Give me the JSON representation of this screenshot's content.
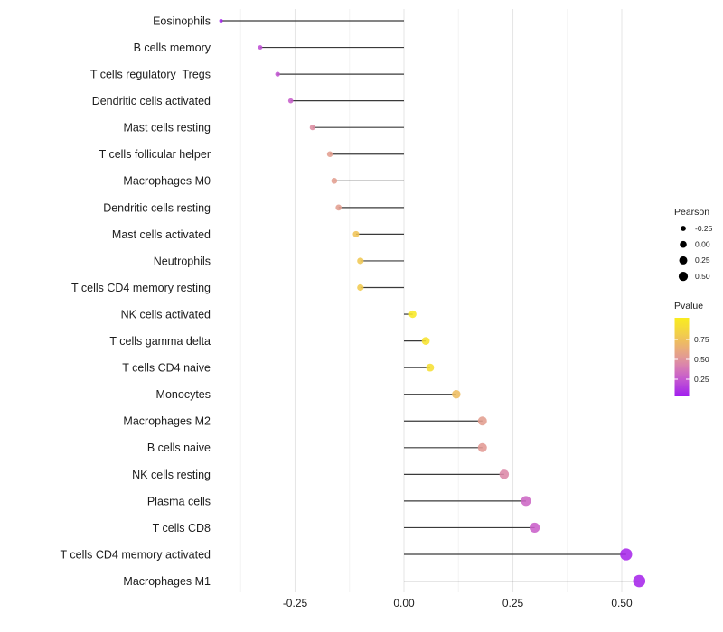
{
  "chart_data": {
    "type": "lollipop",
    "title": "",
    "xlabel": "",
    "ylabel": "",
    "grid": true,
    "background": "#ffffff",
    "categories": [
      "Eosinophils",
      "B cells memory",
      "T cells regulatory  Tregs",
      "Dendritic cells activated",
      "Mast cells resting",
      "T cells follicular helper",
      "Macrophages M0",
      "Dendritic cells resting",
      "Mast cells activated",
      "Neutrophils",
      "T cells CD4 memory resting",
      "NK cells activated",
      "T cells gamma delta",
      "T cells CD4 naive",
      "Monocytes",
      "Macrophages M2",
      "B cells naive",
      "NK cells resting",
      "Plasma cells",
      "T cells CD8",
      "T cells CD4 memory activated",
      "Macrophages M1"
    ],
    "series": [
      {
        "name": "Pearson",
        "values": [
          -0.42,
          -0.33,
          -0.29,
          -0.26,
          -0.21,
          -0.17,
          -0.16,
          -0.15,
          -0.11,
          -0.1,
          -0.1,
          0.02,
          0.05,
          0.06,
          0.12,
          0.18,
          0.18,
          0.23,
          0.28,
          0.3,
          0.51,
          0.54
        ]
      },
      {
        "name": "Pvalue",
        "values": [
          0.02,
          0.18,
          0.2,
          0.24,
          0.44,
          0.52,
          0.52,
          0.52,
          0.74,
          0.76,
          0.78,
          0.97,
          0.92,
          0.9,
          0.7,
          0.52,
          0.5,
          0.42,
          0.28,
          0.25,
          0.04,
          0.03
        ]
      }
    ],
    "x_axis": {
      "ticks": [
        -0.25,
        0.0,
        0.25,
        0.5
      ],
      "tick_labels": [
        "-0.25",
        "0.00",
        "0.25",
        "0.50"
      ],
      "minor_ticks": [
        -0.375,
        -0.125,
        0.125,
        0.375
      ],
      "range": [
        -0.47,
        0.59
      ]
    },
    "legend": {
      "position": "right",
      "size_legend": {
        "title": "Pearson",
        "labels": [
          "-0.25",
          "0.00",
          "0.25",
          "0.50"
        ],
        "values": [
          -0.25,
          0.0,
          0.25,
          0.5
        ],
        "dot_color": "#000000"
      },
      "color_legend": {
        "title": "Pvalue",
        "labels": [
          "0.75",
          "0.50",
          "0.25"
        ],
        "values": [
          0.75,
          0.5,
          0.25
        ],
        "high_color": "#F9EC20",
        "low_color": "#A11CF0"
      }
    },
    "color_scale_stops": [
      {
        "p": 0.0,
        "color": "#A11CF0"
      },
      {
        "p": 0.1,
        "color": "#B13AE0"
      },
      {
        "p": 0.2,
        "color": "#C254D2"
      },
      {
        "p": 0.3,
        "color": "#CF6CC0"
      },
      {
        "p": 0.4,
        "color": "#DA84AC"
      },
      {
        "p": 0.5,
        "color": "#E29A94"
      },
      {
        "p": 0.6,
        "color": "#E9AC7B"
      },
      {
        "p": 0.7,
        "color": "#EEBD60"
      },
      {
        "p": 0.8,
        "color": "#F2CF4A"
      },
      {
        "p": 0.9,
        "color": "#F6DF33"
      },
      {
        "p": 1.0,
        "color": "#F9EC20"
      }
    ],
    "colors": {
      "stem": "#3a3a3a",
      "grid_major": "#e6e6e6",
      "grid_minor": "#f3f3f3",
      "axis_text": "#1c1c1c",
      "legend_text": "#1c1c1c"
    }
  }
}
